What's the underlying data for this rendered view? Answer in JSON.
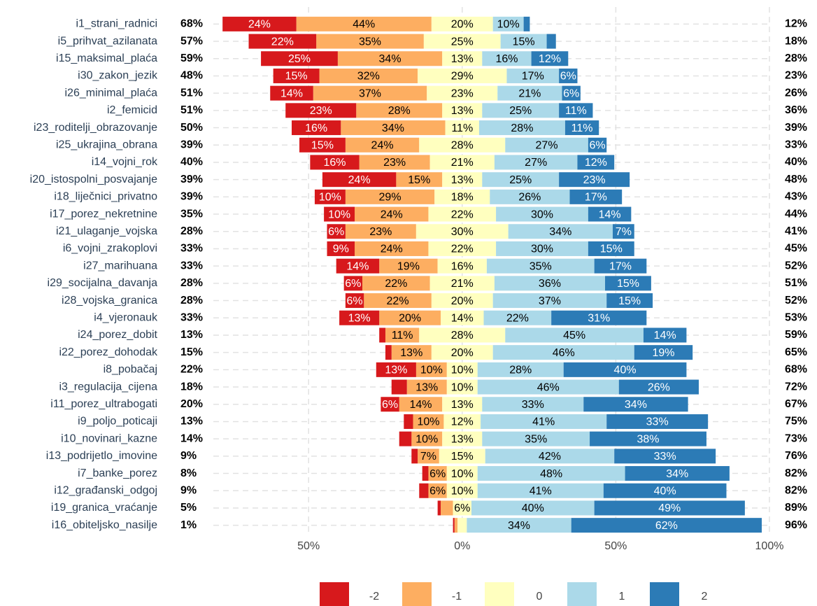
{
  "chart_data": {
    "type": "diverging_bar",
    "categories": [
      "i1_strani_radnici",
      "i5_prihvat_azilanata",
      "i15_maksimal_plaća",
      "i30_zakon_jezik",
      "i26_minimal_plaća",
      "i2_femicid",
      "i23_roditelji_obrazovanje",
      "i25_ukrajina_obrana",
      "i14_vojni_rok",
      "i20_istospolni_posvajanje",
      "i18_liječnici_privatno",
      "i17_porez_nekretnine",
      "i21_ulaganje_vojska",
      "i6_vojni_zrakoplovi",
      "i27_marihuana",
      "i29_socijalna_davanja",
      "i28_vojska_granica",
      "i4_vjeronauk",
      "i24_porez_dobit",
      "i22_porez_dohodak",
      "i8_pobačaj",
      "i3_regulacija_cijena",
      "i11_porez_ultrabogati",
      "i9_poljo_poticaji",
      "i10_novinari_kazne",
      "i13_podrijetlo_imovine",
      "i7_banke_porez",
      "i12_građanski_odgoj",
      "i19_granica_vraćanje",
      "i16_obiteljsko_nasilje"
    ],
    "series": [
      {
        "name": "-2",
        "color": "#d7191c",
        "values": [
          24,
          22,
          25,
          15,
          14,
          23,
          16,
          15,
          16,
          24,
          10,
          10,
          6,
          9,
          14,
          6,
          6,
          13,
          2,
          2,
          13,
          5,
          6,
          3,
          4,
          2,
          2,
          3,
          1,
          0.5
        ],
        "value_labels": [
          "24%",
          "22%",
          "25%",
          "15%",
          "14%",
          "23%",
          "16%",
          "15%",
          "16%",
          "24%",
          "10%",
          "10%",
          "6%",
          "9%",
          "14%",
          "6%",
          "6%",
          "13%",
          null,
          null,
          "13%",
          null,
          "6%",
          null,
          null,
          null,
          null,
          null,
          null,
          null
        ]
      },
      {
        "name": "-1",
        "color": "#fdae61",
        "values": [
          44,
          35,
          34,
          32,
          37,
          28,
          34,
          24,
          23,
          15,
          29,
          24,
          23,
          24,
          19,
          22,
          22,
          20,
          11,
          13,
          10,
          13,
          14,
          10,
          10,
          7,
          6,
          6,
          4,
          1
        ],
        "value_labels": [
          "44%",
          "35%",
          "34%",
          "32%",
          "37%",
          "28%",
          "34%",
          "24%",
          "23%",
          "15%",
          "29%",
          "24%",
          "23%",
          "24%",
          "19%",
          "22%",
          "22%",
          "20%",
          "11%",
          "13%",
          "10%",
          "13%",
          "14%",
          "10%",
          "10%",
          "7%",
          "6%",
          "6%",
          null,
          null
        ]
      },
      {
        "name": "0",
        "color": "#ffffbf",
        "values": [
          20,
          25,
          13,
          29,
          23,
          13,
          11,
          28,
          21,
          13,
          18,
          22,
          30,
          22,
          16,
          21,
          20,
          14,
          28,
          20,
          10,
          10,
          13,
          12,
          13,
          15,
          10,
          10,
          6,
          3
        ],
        "value_labels": [
          "20%",
          "25%",
          "13%",
          "29%",
          "23%",
          "13%",
          "11%",
          "28%",
          "21%",
          "13%",
          "18%",
          "22%",
          "30%",
          "22%",
          "16%",
          "21%",
          "20%",
          "14%",
          "28%",
          "20%",
          "10%",
          "10%",
          "13%",
          "12%",
          "13%",
          "15%",
          "10%",
          "10%",
          "6%",
          null
        ]
      },
      {
        "name": "1",
        "color": "#abd9e9",
        "values": [
          10,
          15,
          16,
          17,
          21,
          25,
          28,
          27,
          27,
          25,
          26,
          30,
          34,
          30,
          35,
          36,
          37,
          22,
          45,
          46,
          28,
          46,
          33,
          41,
          35,
          42,
          48,
          41,
          40,
          34
        ],
        "value_labels": [
          "10%",
          "15%",
          "16%",
          "17%",
          "21%",
          "25%",
          "28%",
          "27%",
          "27%",
          "25%",
          "26%",
          "30%",
          "34%",
          "30%",
          "35%",
          "36%",
          "37%",
          "22%",
          "45%",
          "46%",
          "28%",
          "46%",
          "33%",
          "41%",
          "35%",
          "42%",
          "48%",
          "41%",
          "40%",
          "34%"
        ]
      },
      {
        "name": "2",
        "color": "#2c7bb6",
        "values": [
          2,
          3,
          12,
          6,
          6,
          11,
          11,
          6,
          12,
          23,
          17,
          14,
          7,
          15,
          17,
          15,
          15,
          31,
          14,
          19,
          40,
          26,
          34,
          33,
          38,
          33,
          34,
          40,
          49,
          62
        ],
        "value_labels": [
          null,
          null,
          "12%",
          "6%",
          "6%",
          "11%",
          "11%",
          "6%",
          "12%",
          "23%",
          "17%",
          "14%",
          "7%",
          "15%",
          "17%",
          "15%",
          "15%",
          "31%",
          "14%",
          "19%",
          "40%",
          "26%",
          "34%",
          "33%",
          "38%",
          "33%",
          "34%",
          "40%",
          "49%",
          "62%"
        ]
      }
    ],
    "low_totals": [
      "68%",
      "57%",
      "59%",
      "48%",
      "51%",
      "51%",
      "50%",
      "39%",
      "40%",
      "39%",
      "39%",
      "35%",
      "28%",
      "33%",
      "33%",
      "28%",
      "28%",
      "33%",
      "13%",
      "15%",
      "22%",
      "18%",
      "20%",
      "13%",
      "14%",
      "9%",
      "8%",
      "9%",
      "5%",
      "1%"
    ],
    "high_totals": [
      "12%",
      "18%",
      "28%",
      "23%",
      "26%",
      "36%",
      "39%",
      "33%",
      "40%",
      "48%",
      "43%",
      "44%",
      "41%",
      "45%",
      "52%",
      "51%",
      "52%",
      "53%",
      "59%",
      "65%",
      "68%",
      "72%",
      "67%",
      "75%",
      "73%",
      "76%",
      "82%",
      "82%",
      "89%",
      "96%"
    ],
    "xlim": [
      -81,
      100
    ],
    "xticks": [
      {
        "value": -50,
        "label": "50%"
      },
      {
        "value": 0,
        "label": "0%"
      },
      {
        "value": 50,
        "label": "50%"
      },
      {
        "value": 100,
        "label": "100%"
      }
    ],
    "grid": true
  }
}
